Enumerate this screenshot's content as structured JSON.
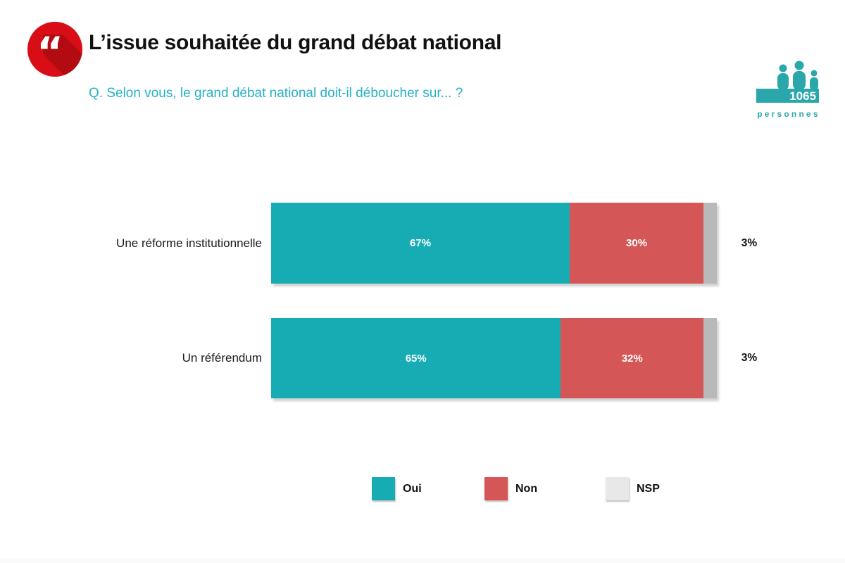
{
  "slide": {
    "title": "L’issue souhaitée du grand débat national",
    "question": "Q. Selon vous, le grand débat national doit-il déboucher sur... ?",
    "sample": {
      "count": "1065",
      "unit": "personnes"
    }
  },
  "icons": {
    "quote_icon": {
      "color": "#d90d16",
      "shadow_color": "#b30b12",
      "glyph": "“"
    },
    "people_icon_color": "#2aa7ab"
  },
  "chart_data": {
    "type": "bar",
    "orientation": "horizontal-stacked",
    "categories": [
      "Une réforme institutionnelle",
      "Un référendum"
    ],
    "series": [
      {
        "name": "Oui",
        "color": "#17acb3",
        "legend_color": "#17acb3",
        "values": [
          67,
          65
        ]
      },
      {
        "name": "Non",
        "color": "#d55656",
        "legend_color": "#d55656",
        "values": [
          30,
          32
        ]
      },
      {
        "name": "NSP",
        "color": "#b9b9b9",
        "legend_color": "#e8e8e8",
        "values": [
          3,
          3
        ]
      }
    ],
    "value_suffix": "%",
    "xlim": [
      0,
      100
    ],
    "data_labels": "inside white bold; NSP value shown outside right in black",
    "legend_position": "bottom",
    "grid": false
  },
  "colors": {
    "background": "#ffffff",
    "title_text": "#111111",
    "question_text": "#26b1c5",
    "bar_label_text": "#ffffff",
    "category_text": "#1a1a1a"
  }
}
